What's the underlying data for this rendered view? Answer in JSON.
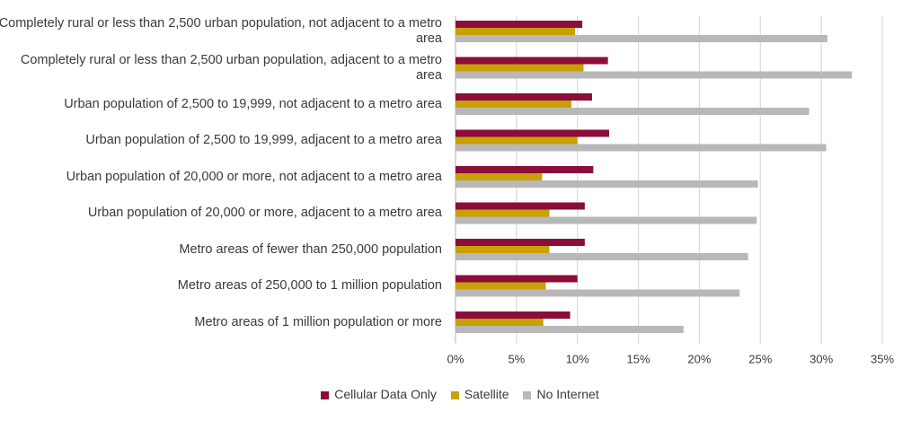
{
  "chart_data": {
    "type": "bar",
    "orientation": "horizontal",
    "categories": [
      "Completely rural or less than 2,500 urban population, not adjacent to a metro area",
      "Completely rural or less than 2,500 urban population, adjacent to a metro area",
      "Urban population of 2,500 to 19,999, not adjacent to a metro area",
      "Urban population of 2,500 to 19,999, adjacent to a metro area",
      "Urban population of 20,000 or more, not adjacent to a metro area",
      "Urban population of 20,000 or more, adjacent to a metro area",
      "Metro areas of fewer than 250,000 population",
      "Metro areas of 250,000 to 1 million population",
      "Metro areas of 1 million population or more"
    ],
    "series": [
      {
        "name": "Cellular Data Only",
        "color": "#8b0e3a",
        "values": [
          10.4,
          12.5,
          11.2,
          12.6,
          11.3,
          10.6,
          10.6,
          10.0,
          9.4
        ]
      },
      {
        "name": "Satellite",
        "color": "#c9a005",
        "values": [
          9.8,
          10.5,
          9.5,
          10.0,
          7.1,
          7.7,
          7.7,
          7.4,
          7.2
        ]
      },
      {
        "name": "No Internet",
        "color": "#b8b8b8",
        "values": [
          30.5,
          32.5,
          29.0,
          30.4,
          24.8,
          24.7,
          24.0,
          23.3,
          18.7
        ]
      }
    ],
    "xlim": [
      0,
      35
    ],
    "xticks": [
      0,
      5,
      10,
      15,
      20,
      25,
      30,
      35
    ],
    "xtick_labels": [
      "0%",
      "5%",
      "10%",
      "15%",
      "20%",
      "25%",
      "30%",
      "35%"
    ],
    "grid": "vertical",
    "legend_position": "bottom"
  }
}
